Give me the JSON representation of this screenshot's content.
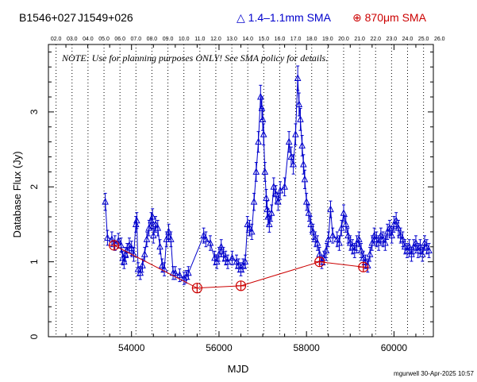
{
  "header": {
    "source_name_1": "B1546+027",
    "source_name_2": "J1549+026",
    "legend_sma_1mm": "△ 1.4–1.1mm SMA",
    "legend_sma_870": "⊕ 870μm SMA"
  },
  "note": "NOTE: Use for planning purposes ONLY! See SMA policy for details.",
  "credit": "mgurwell 30-Apr-2025 10:57",
  "colors": {
    "sma_1mm": "#0000cc",
    "sma_870": "#cc0000",
    "axes": "#000000"
  },
  "chart_data": {
    "type": "scatter",
    "xlabel": "MJD",
    "ylabel": "Database Flux (Jy)",
    "xlim": [
      52100,
      60900
    ],
    "ylim": [
      0,
      3.9
    ],
    "x_ticks": [
      54000,
      56000,
      58000,
      60000
    ],
    "y_ticks": [
      0,
      1,
      2,
      3
    ],
    "top_axis_labels": [
      "02.0",
      "03.0",
      "04.0",
      "05.0",
      "06.0",
      "07.0",
      "08.0",
      "09.0",
      "10.0",
      "11.0",
      "12.0",
      "13.0",
      "14.0",
      "15.0",
      "16.0",
      "17.0",
      "18.0",
      "19.0",
      "20.0",
      "21.0",
      "22.0",
      "23.0",
      "24.0",
      "25.0",
      "26.0"
    ],
    "top_axis_mjd": [
      52275,
      52640,
      53005,
      53371,
      53736,
      54101,
      54466,
      54832,
      55197,
      55562,
      55927,
      56293,
      56658,
      57023,
      57388,
      57754,
      58119,
      58484,
      58849,
      59215,
      59580,
      59945,
      60310,
      60676,
      61041
    ],
    "series": [
      {
        "name": "1.4–1.1mm SMA",
        "marker": "triangle",
        "points": [
          [
            53400,
            1.8
          ],
          [
            53450,
            1.32
          ],
          [
            53550,
            1.3
          ],
          [
            53620,
            1.25
          ],
          [
            53700,
            1.28
          ],
          [
            53760,
            1.22
          ],
          [
            53800,
            1.05
          ],
          [
            53830,
            1.0
          ],
          [
            53860,
            1.1
          ],
          [
            53900,
            1.15
          ],
          [
            53950,
            1.22
          ],
          [
            54000,
            1.18
          ],
          [
            54050,
            1.1
          ],
          [
            54100,
            1.5
          ],
          [
            54120,
            1.55
          ],
          [
            54150,
            0.9
          ],
          [
            54200,
            0.85
          ],
          [
            54250,
            0.95
          ],
          [
            54300,
            1.1
          ],
          [
            54350,
            1.3
          ],
          [
            54400,
            1.45
          ],
          [
            54450,
            1.55
          ],
          [
            54480,
            1.6
          ],
          [
            54500,
            1.35
          ],
          [
            54550,
            1.5
          ],
          [
            54600,
            1.45
          ],
          [
            54650,
            1.2
          ],
          [
            54700,
            0.95
          ],
          [
            54750,
            0.9
          ],
          [
            54800,
            1.3
          ],
          [
            54850,
            1.4
          ],
          [
            54900,
            1.3
          ],
          [
            54950,
            0.85
          ],
          [
            55000,
            0.85
          ],
          [
            55100,
            0.82
          ],
          [
            55200,
            0.78
          ],
          [
            55250,
            0.8
          ],
          [
            55300,
            0.85
          ],
          [
            55650,
            1.35
          ],
          [
            55700,
            1.3
          ],
          [
            55800,
            1.25
          ],
          [
            55900,
            1.05
          ],
          [
            55950,
            1.0
          ],
          [
            56000,
            1.1
          ],
          [
            56050,
            1.2
          ],
          [
            56100,
            1.1
          ],
          [
            56150,
            1.05
          ],
          [
            56200,
            1.0
          ],
          [
            56300,
            1.05
          ],
          [
            56400,
            1.0
          ],
          [
            56450,
            0.95
          ],
          [
            56500,
            0.9
          ],
          [
            56550,
            0.95
          ],
          [
            56600,
            1.0
          ],
          [
            56650,
            1.5
          ],
          [
            56700,
            1.45
          ],
          [
            56750,
            1.4
          ],
          [
            56800,
            1.8
          ],
          [
            56850,
            2.2
          ],
          [
            56900,
            2.6
          ],
          [
            56950,
            3.2
          ],
          [
            56980,
            3.05
          ],
          [
            57000,
            2.9
          ],
          [
            57020,
            2.7
          ],
          [
            57050,
            2.2
          ],
          [
            57080,
            1.85
          ],
          [
            57100,
            1.7
          ],
          [
            57120,
            1.6
          ],
          [
            57150,
            1.5
          ],
          [
            57200,
            1.65
          ],
          [
            57250,
            2.0
          ],
          [
            57300,
            1.9
          ],
          [
            57350,
            1.8
          ],
          [
            57400,
            1.95
          ],
          [
            57500,
            2.0
          ],
          [
            57600,
            2.6
          ],
          [
            57650,
            2.4
          ],
          [
            57700,
            2.3
          ],
          [
            57750,
            2.7
          ],
          [
            57800,
            3.45
          ],
          [
            57830,
            3.1
          ],
          [
            57860,
            2.9
          ],
          [
            57900,
            2.55
          ],
          [
            57930,
            2.3
          ],
          [
            57960,
            2.1
          ],
          [
            58000,
            1.8
          ],
          [
            58050,
            1.65
          ],
          [
            58100,
            1.5
          ],
          [
            58150,
            1.4
          ],
          [
            58200,
            1.3
          ],
          [
            58250,
            1.25
          ],
          [
            58300,
            1.1
          ],
          [
            58350,
            1.0
          ],
          [
            58400,
            1.05
          ],
          [
            58450,
            1.15
          ],
          [
            58500,
            1.3
          ],
          [
            58550,
            1.7
          ],
          [
            58600,
            1.35
          ],
          [
            58700,
            1.3
          ],
          [
            58750,
            1.25
          ],
          [
            58800,
            1.45
          ],
          [
            58850,
            1.65
          ],
          [
            58900,
            1.5
          ],
          [
            58950,
            1.35
          ],
          [
            59000,
            1.25
          ],
          [
            59050,
            1.2
          ],
          [
            59100,
            1.15
          ],
          [
            59150,
            1.25
          ],
          [
            59200,
            1.3
          ],
          [
            59250,
            1.15
          ],
          [
            59300,
            1.05
          ],
          [
            59350,
            1.0
          ],
          [
            59400,
            0.95
          ],
          [
            59450,
            1.1
          ],
          [
            59500,
            1.25
          ],
          [
            59550,
            1.35
          ],
          [
            59600,
            1.3
          ],
          [
            59650,
            1.25
          ],
          [
            59700,
            1.35
          ],
          [
            59750,
            1.3
          ],
          [
            59800,
            1.25
          ],
          [
            59850,
            1.4
          ],
          [
            59900,
            1.45
          ],
          [
            59950,
            1.35
          ],
          [
            60000,
            1.5
          ],
          [
            60050,
            1.55
          ],
          [
            60100,
            1.45
          ],
          [
            60150,
            1.35
          ],
          [
            60200,
            1.3
          ],
          [
            60250,
            1.2
          ],
          [
            60300,
            1.15
          ],
          [
            60350,
            1.2
          ],
          [
            60400,
            1.1
          ],
          [
            60450,
            1.2
          ],
          [
            60500,
            1.25
          ],
          [
            60550,
            1.15
          ],
          [
            60600,
            1.2
          ],
          [
            60650,
            1.1
          ],
          [
            60700,
            1.25
          ],
          [
            60750,
            1.2
          ],
          [
            60800,
            1.15
          ]
        ]
      },
      {
        "name": "870μm SMA",
        "marker": "circle-plus",
        "points": [
          [
            53600,
            1.22
          ],
          [
            55500,
            0.65
          ],
          [
            56500,
            0.68
          ],
          [
            58300,
            1.0
          ],
          [
            59300,
            0.93
          ]
        ]
      }
    ]
  }
}
